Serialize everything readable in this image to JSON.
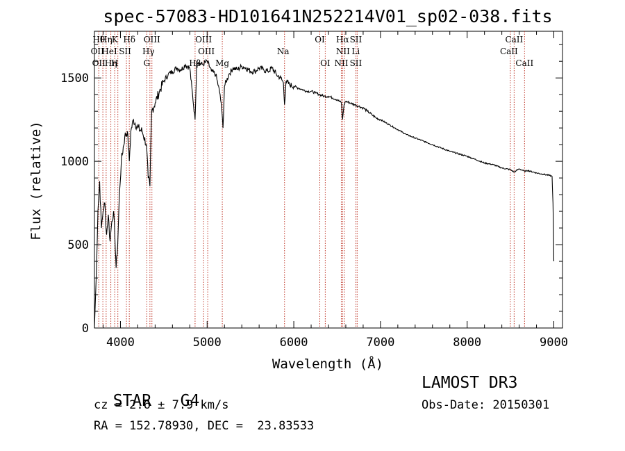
{
  "chart_data": {
    "type": "line",
    "title": "spec-57083-HD101641N252214V01_sp02-038.fits",
    "xlabel": "Wavelength (Å)",
    "ylabel": "Flux (relative)",
    "xlim": [
      3700,
      9100
    ],
    "ylim": [
      0,
      1780
    ],
    "x_ticks": [
      4000,
      5000,
      6000,
      7000,
      8000,
      9000
    ],
    "y_ticks": [
      0,
      500,
      1000,
      1500
    ],
    "series": [
      {
        "name": "spectrum",
        "x": [
          3700,
          3720,
          3740,
          3760,
          3780,
          3800,
          3820,
          3840,
          3860,
          3880,
          3900,
          3920,
          3935,
          3950,
          3968,
          3990,
          4010,
          4050,
          4080,
          4102,
          4120,
          4150,
          4200,
          4250,
          4300,
          4320,
          4340,
          4360,
          4400,
          4450,
          4500,
          4550,
          4600,
          4650,
          4700,
          4750,
          4800,
          4861,
          4880,
          4900,
          4950,
          5000,
          5050,
          5100,
          5150,
          5170,
          5183,
          5200,
          5250,
          5300,
          5350,
          5400,
          5450,
          5500,
          5550,
          5600,
          5650,
          5700,
          5750,
          5800,
          5850,
          5880,
          5893,
          5910,
          5950,
          6000,
          6050,
          6100,
          6150,
          6200,
          6250,
          6300,
          6350,
          6400,
          6450,
          6500,
          6550,
          6562,
          6580,
          6600,
          6650,
          6700,
          6750,
          6800,
          6850,
          6900,
          6950,
          7000,
          7100,
          7200,
          7300,
          7400,
          7500,
          7600,
          7700,
          7800,
          7900,
          8000,
          8100,
          8200,
          8300,
          8400,
          8498,
          8542,
          8600,
          8662,
          8700,
          8800,
          8900,
          8950,
          8980,
          8990,
          8995,
          9000
        ],
        "y": [
          0,
          300,
          700,
          880,
          600,
          700,
          750,
          560,
          680,
          520,
          640,
          700,
          560,
          360,
          500,
          820,
          1000,
          1150,
          1180,
          1000,
          1180,
          1250,
          1200,
          1180,
          1100,
          900,
          850,
          1300,
          1350,
          1420,
          1480,
          1520,
          1540,
          1560,
          1550,
          1580,
          1560,
          1250,
          1600,
          1590,
          1580,
          1600,
          1540,
          1520,
          1400,
          1300,
          1200,
          1450,
          1520,
          1560,
          1550,
          1570,
          1560,
          1540,
          1540,
          1560,
          1550,
          1540,
          1560,
          1520,
          1500,
          1470,
          1340,
          1480,
          1460,
          1450,
          1440,
          1430,
          1420,
          1420,
          1410,
          1400,
          1390,
          1390,
          1380,
          1370,
          1350,
          1250,
          1340,
          1360,
          1350,
          1340,
          1330,
          1320,
          1300,
          1280,
          1260,
          1250,
          1220,
          1190,
          1160,
          1140,
          1120,
          1100,
          1080,
          1060,
          1045,
          1030,
          1010,
          990,
          980,
          960,
          950,
          935,
          955,
          940,
          945,
          930,
          920,
          915,
          910,
          750,
          600,
          400
        ],
        "color": "#000000"
      }
    ],
    "lines": [
      {
        "wavelength": 3750,
        "label_rows": [
          "Hθ",
          "OII",
          "OII"
        ]
      },
      {
        "wavelength": 3797,
        "label_rows": [
          "",
          "",
          ""
        ]
      },
      {
        "wavelength": 3835,
        "label_rows": [
          "Hη",
          "",
          ""
        ]
      },
      {
        "wavelength": 3889,
        "label_rows": [
          "",
          "HeI",
          "Hη"
        ]
      },
      {
        "wavelength": 3934,
        "label_rows": [
          "K",
          "",
          "H"
        ]
      },
      {
        "wavelength": 3970,
        "label_rows": [
          "",
          "",
          ""
        ]
      },
      {
        "wavelength": 4069,
        "label_rows": [
          "",
          "SII",
          ""
        ]
      },
      {
        "wavelength": 4102,
        "label_rows": [
          "Hδ",
          "",
          ""
        ]
      },
      {
        "wavelength": 4304,
        "label_rows": [
          "",
          "",
          "G"
        ]
      },
      {
        "wavelength": 4340,
        "label_rows": [
          "",
          "Hγ",
          ""
        ]
      },
      {
        "wavelength": 4363,
        "label_rows": [
          "OIII",
          "",
          ""
        ]
      },
      {
        "wavelength": 4861,
        "label_rows": [
          "",
          "",
          "Hβ"
        ]
      },
      {
        "wavelength": 4959,
        "label_rows": [
          "OIII",
          "",
          ""
        ]
      },
      {
        "wavelength": 5007,
        "label_rows": [
          "",
          "OIII",
          ""
        ]
      },
      {
        "wavelength": 5175,
        "label_rows": [
          "",
          "",
          "Mg"
        ]
      },
      {
        "wavelength": 5893,
        "label_rows": [
          "",
          "Na",
          ""
        ]
      },
      {
        "wavelength": 6300,
        "label_rows": [
          "OI",
          "",
          ""
        ]
      },
      {
        "wavelength": 6363,
        "label_rows": [
          "",
          "",
          "OI"
        ]
      },
      {
        "wavelength": 6548,
        "label_rows": [
          "",
          "",
          "NII"
        ]
      },
      {
        "wavelength": 6563,
        "label_rows": [
          "Hα",
          "",
          ""
        ]
      },
      {
        "wavelength": 6583,
        "label_rows": [
          "",
          "NII",
          ""
        ]
      },
      {
        "wavelength": 6716,
        "label_rows": [
          "SII",
          "",
          "SII"
        ]
      },
      {
        "wavelength": 6731,
        "label_rows": [
          "",
          "Li",
          ""
        ]
      },
      {
        "wavelength": 8498,
        "label_rows": [
          "",
          "CaII",
          ""
        ]
      },
      {
        "wavelength": 8542,
        "label_rows": [
          "CaII",
          "",
          ""
        ]
      },
      {
        "wavelength": 8662,
        "label_rows": [
          "",
          "",
          "CaII"
        ]
      }
    ],
    "grid": false,
    "legend": "none"
  },
  "info": {
    "object_class": "STAR",
    "subclass": "G4",
    "survey": "LAMOST DR3",
    "cz": "cz = 2.6 ± 7.9 km/s",
    "obs_date": "Obs-Date: 20150301",
    "coords": "RA = 152.78930, DEC =  23.83533"
  }
}
